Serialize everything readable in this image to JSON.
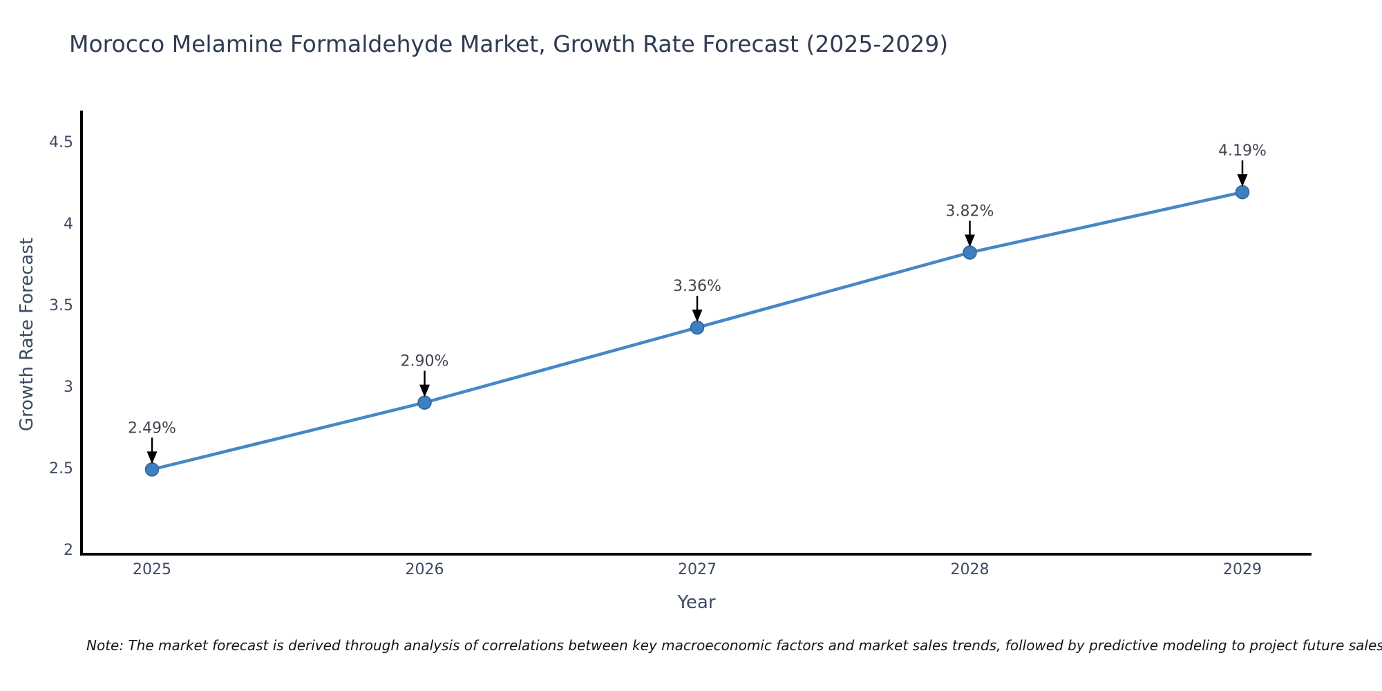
{
  "chart_data": {
    "type": "line",
    "title": "Morocco Melamine Formaldehyde Market, Growth Rate Forecast (2025-2029)",
    "xlabel": "Year",
    "ylabel": "Growth Rate Forecast",
    "x": [
      2025,
      2026,
      2027,
      2028,
      2029
    ],
    "values": [
      2.49,
      2.9,
      3.36,
      3.82,
      4.19
    ],
    "point_labels": [
      "2.49%",
      "2.90%",
      "3.36%",
      "3.82%",
      "4.19%"
    ],
    "y_ticks": [
      2,
      2.5,
      3,
      3.5,
      4,
      4.5
    ],
    "ylim": [
      2,
      4.5
    ],
    "grid": false,
    "legend_position": "none",
    "annotations_have_arrows": true,
    "colors": {
      "line": "#4787c7",
      "marker": "#3d7fc1",
      "marker_edge": "#2d6399",
      "axis": "#000000",
      "tick_label": "#3d4a63",
      "annotation_text": "#40454f",
      "arrow": "#000000",
      "title": "#2f3b52"
    }
  },
  "note": "Note: The market forecast is derived through analysis of correlations between key macroeconomic factors and market sales trends, followed by predictive modeling to project future sales"
}
